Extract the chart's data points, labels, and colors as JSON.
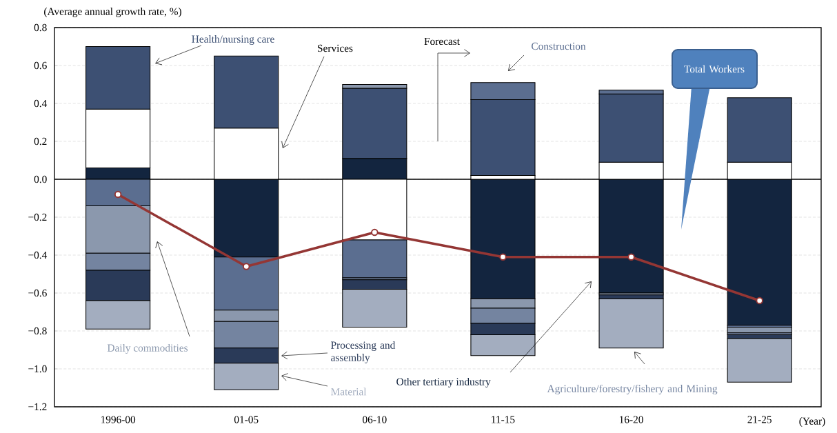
{
  "chart_data": {
    "type": "bar",
    "stacked": true,
    "xlabel": "(Year)",
    "ylabel": "(Average annual growth rate, %)",
    "categories": [
      "1996-00",
      "01-05",
      "06-10",
      "11-15",
      "16-20",
      "21-25"
    ],
    "ylim": [
      -1.2,
      0.8
    ],
    "yticks": [
      0.8,
      0.6,
      0.4,
      0.2,
      {
        "value": 0,
        "label": "0.0"
      },
      {
        "value": -0.2,
        "label": "−0.2"
      },
      {
        "value": -0.4,
        "label": "−0.4"
      },
      {
        "value": -0.6,
        "label": "−0.6"
      },
      {
        "value": -0.8,
        "label": "−0.8"
      },
      {
        "value": -1.0,
        "label": "−1.0"
      },
      {
        "value": -1.2,
        "label": "−1.2"
      }
    ],
    "grid": "y",
    "marker": "circle",
    "annotations": [
      "Forecast"
    ],
    "series": [
      {
        "name": "Other tertiary industry",
        "color": "#13253f",
        "values": [
          0.06,
          -0.41,
          0.11,
          -0.63,
          -0.6,
          -0.77
        ]
      },
      {
        "name": "Services",
        "color": "#ffffff",
        "values": [
          0.31,
          0.27,
          -0.32,
          0.02,
          0.09,
          0.09
        ]
      },
      {
        "name": "Health/nursing care",
        "color": "#3d5073",
        "values": [
          0.33,
          0.38,
          0.37,
          0.4,
          0.36,
          0.34
        ]
      },
      {
        "name": "Construction",
        "color": "#5b6e90",
        "values": [
          -0.14,
          -0.28,
          -0.2,
          0.09,
          0.02,
          -0.01
        ]
      },
      {
        "name": "Daily commodities",
        "color": "#8b98ad",
        "values": [
          -0.25,
          -0.06,
          0.02,
          -0.05,
          -0.01,
          -0.03
        ]
      },
      {
        "name": "Agriculture/forestry/fishery and Mining",
        "color": "#7484a0",
        "values": [
          -0.09,
          -0.14,
          -0.01,
          -0.08,
          null,
          -0.01
        ]
      },
      {
        "name": "Processing and assembly",
        "color": "#2a3a58",
        "values": [
          -0.16,
          -0.08,
          -0.05,
          -0.06,
          -0.02,
          -0.02
        ]
      },
      {
        "name": "Material",
        "color": "#a3adbf",
        "values": [
          -0.15,
          -0.14,
          -0.2,
          -0.11,
          -0.26,
          -0.23
        ]
      },
      {
        "name": "Total Workers",
        "type": "line",
        "color": "#943634",
        "values": [
          -0.08,
          -0.46,
          -0.28,
          -0.41,
          -0.41,
          -0.64
        ]
      }
    ]
  }
}
